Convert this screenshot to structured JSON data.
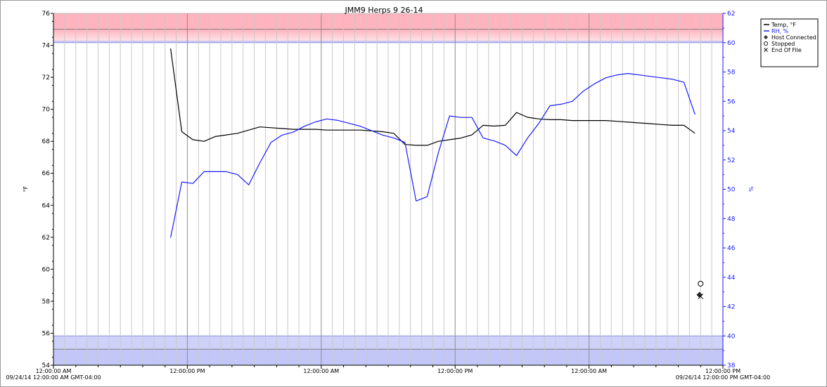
{
  "chart_data": {
    "type": "line",
    "title": "JMM9 Herps 9 26-14",
    "ylabel_left": "°F",
    "ylabel_right": "%",
    "ylim_left": [
      54,
      76
    ],
    "ylim_right": [
      38,
      62
    ],
    "left_ticks": [
      54,
      56,
      58,
      60,
      62,
      64,
      66,
      68,
      70,
      72,
      74,
      76
    ],
    "right_ticks": [
      38,
      40,
      42,
      44,
      46,
      48,
      50,
      52,
      54,
      56,
      58,
      60,
      62
    ],
    "x_hours_range": [
      0,
      60
    ],
    "x_tick_labels": [
      {
        "h": 0,
        "label": "12:00:00 AM"
      },
      {
        "h": 12,
        "label": "12:00:00 PM"
      },
      {
        "h": 24,
        "label": "12:00:00 AM"
      },
      {
        "h": 36,
        "label": "12:00:00 PM"
      },
      {
        "h": 48,
        "label": "12:00:00 AM"
      },
      {
        "h": 60,
        "label": "12:00:00 PM"
      }
    ],
    "x_start_label": "09/24/14 12:00:00 AM GMT-04:00",
    "x_end_label": "09/26/14 12:00:00 PM GMT-04:00",
    "legend_position": "top-right",
    "legend": [
      {
        "name": "Temp, °F",
        "color": "#000000",
        "marker": "line"
      },
      {
        "name": "RH, %",
        "color": "#1a1aff",
        "marker": "line"
      },
      {
        "name": "Host Connected",
        "color": "#000000",
        "marker": "diamond"
      },
      {
        "name": "Stopped",
        "color": "#000000",
        "marker": "circle"
      },
      {
        "name": "End Of File",
        "color": "#000000",
        "marker": "x"
      }
    ],
    "alarm_bands": {
      "temp_high": 75,
      "temp_low": 55,
      "rh_high": 60,
      "rh_low": 40,
      "color_temp": "#ff9aa8",
      "color_rh": "#aeb4f5"
    },
    "series": [
      {
        "name": "Temp, °F",
        "axis": "left",
        "color": "#000000",
        "x_hours": [
          10.5,
          11.5,
          12.5,
          13.5,
          14.5,
          15.5,
          16.5,
          17.5,
          18.5,
          19.5,
          20.5,
          21.5,
          22.5,
          23.5,
          24.5,
          25.5,
          26.5,
          27.5,
          28.5,
          29.5,
          30.5,
          31.5,
          32.5,
          33.5,
          34.5,
          35.5,
          36.5,
          37.5,
          38.5,
          39.5,
          40.5,
          41.5,
          42.5,
          43.5,
          44.5,
          45.5,
          46.5,
          47.5,
          48.5,
          49.5,
          50.5,
          51.5,
          52.5,
          53.5,
          54.5,
          55.5,
          56.5,
          57.5
        ],
        "values": [
          73.8,
          68.6,
          68.1,
          68.0,
          68.3,
          68.4,
          68.5,
          68.7,
          68.9,
          68.85,
          68.8,
          68.75,
          68.75,
          68.75,
          68.7,
          68.7,
          68.7,
          68.7,
          68.65,
          68.6,
          68.5,
          67.8,
          67.75,
          67.75,
          68.0,
          68.1,
          68.2,
          68.4,
          69.0,
          68.95,
          69.0,
          69.8,
          69.5,
          69.4,
          69.35,
          69.35,
          69.3,
          69.3,
          69.3,
          69.3,
          69.25,
          69.2,
          69.15,
          69.1,
          69.05,
          69.0,
          69.0,
          68.5
        ]
      },
      {
        "name": "RH, %",
        "axis": "right",
        "color": "#1a1aff",
        "x_hours": [
          10.5,
          11.5,
          12.5,
          13.5,
          14.5,
          15.5,
          16.5,
          17.5,
          18.5,
          19.5,
          20.5,
          21.5,
          22.5,
          23.5,
          24.5,
          25.5,
          26.5,
          27.5,
          28.5,
          29.5,
          30.5,
          31.5,
          32.5,
          33.5,
          34.5,
          35.5,
          36.5,
          37.5,
          38.5,
          39.5,
          40.5,
          41.5,
          42.5,
          43.5,
          44.5,
          45.5,
          46.5,
          47.5,
          48.5,
          49.5,
          50.5,
          51.5,
          52.5,
          53.5,
          54.5,
          55.5,
          56.5,
          57.5
        ],
        "values": [
          46.7,
          50.5,
          50.4,
          51.2,
          51.2,
          51.2,
          51.0,
          50.3,
          51.8,
          53.2,
          53.7,
          53.9,
          54.3,
          54.6,
          54.8,
          54.7,
          54.5,
          54.3,
          54.0,
          53.7,
          53.5,
          53.2,
          49.2,
          49.5,
          52.5,
          55.0,
          54.9,
          54.9,
          53.5,
          53.3,
          53.0,
          52.3,
          53.5,
          54.5,
          55.7,
          55.8,
          56.0,
          56.7,
          57.2,
          57.6,
          57.8,
          57.9,
          57.8,
          57.7,
          57.6,
          57.5,
          57.3,
          55.1
        ]
      }
    ],
    "event_markers": [
      {
        "type": "Stopped",
        "symbol": "circle",
        "h": 58.0,
        "temp": 59.1
      },
      {
        "type": "Host Connected",
        "symbol": "diamond",
        "h": 57.9,
        "temp": 58.4
      },
      {
        "type": "End Of File",
        "symbol": "x",
        "h": 58.0,
        "temp": 58.3
      }
    ]
  }
}
